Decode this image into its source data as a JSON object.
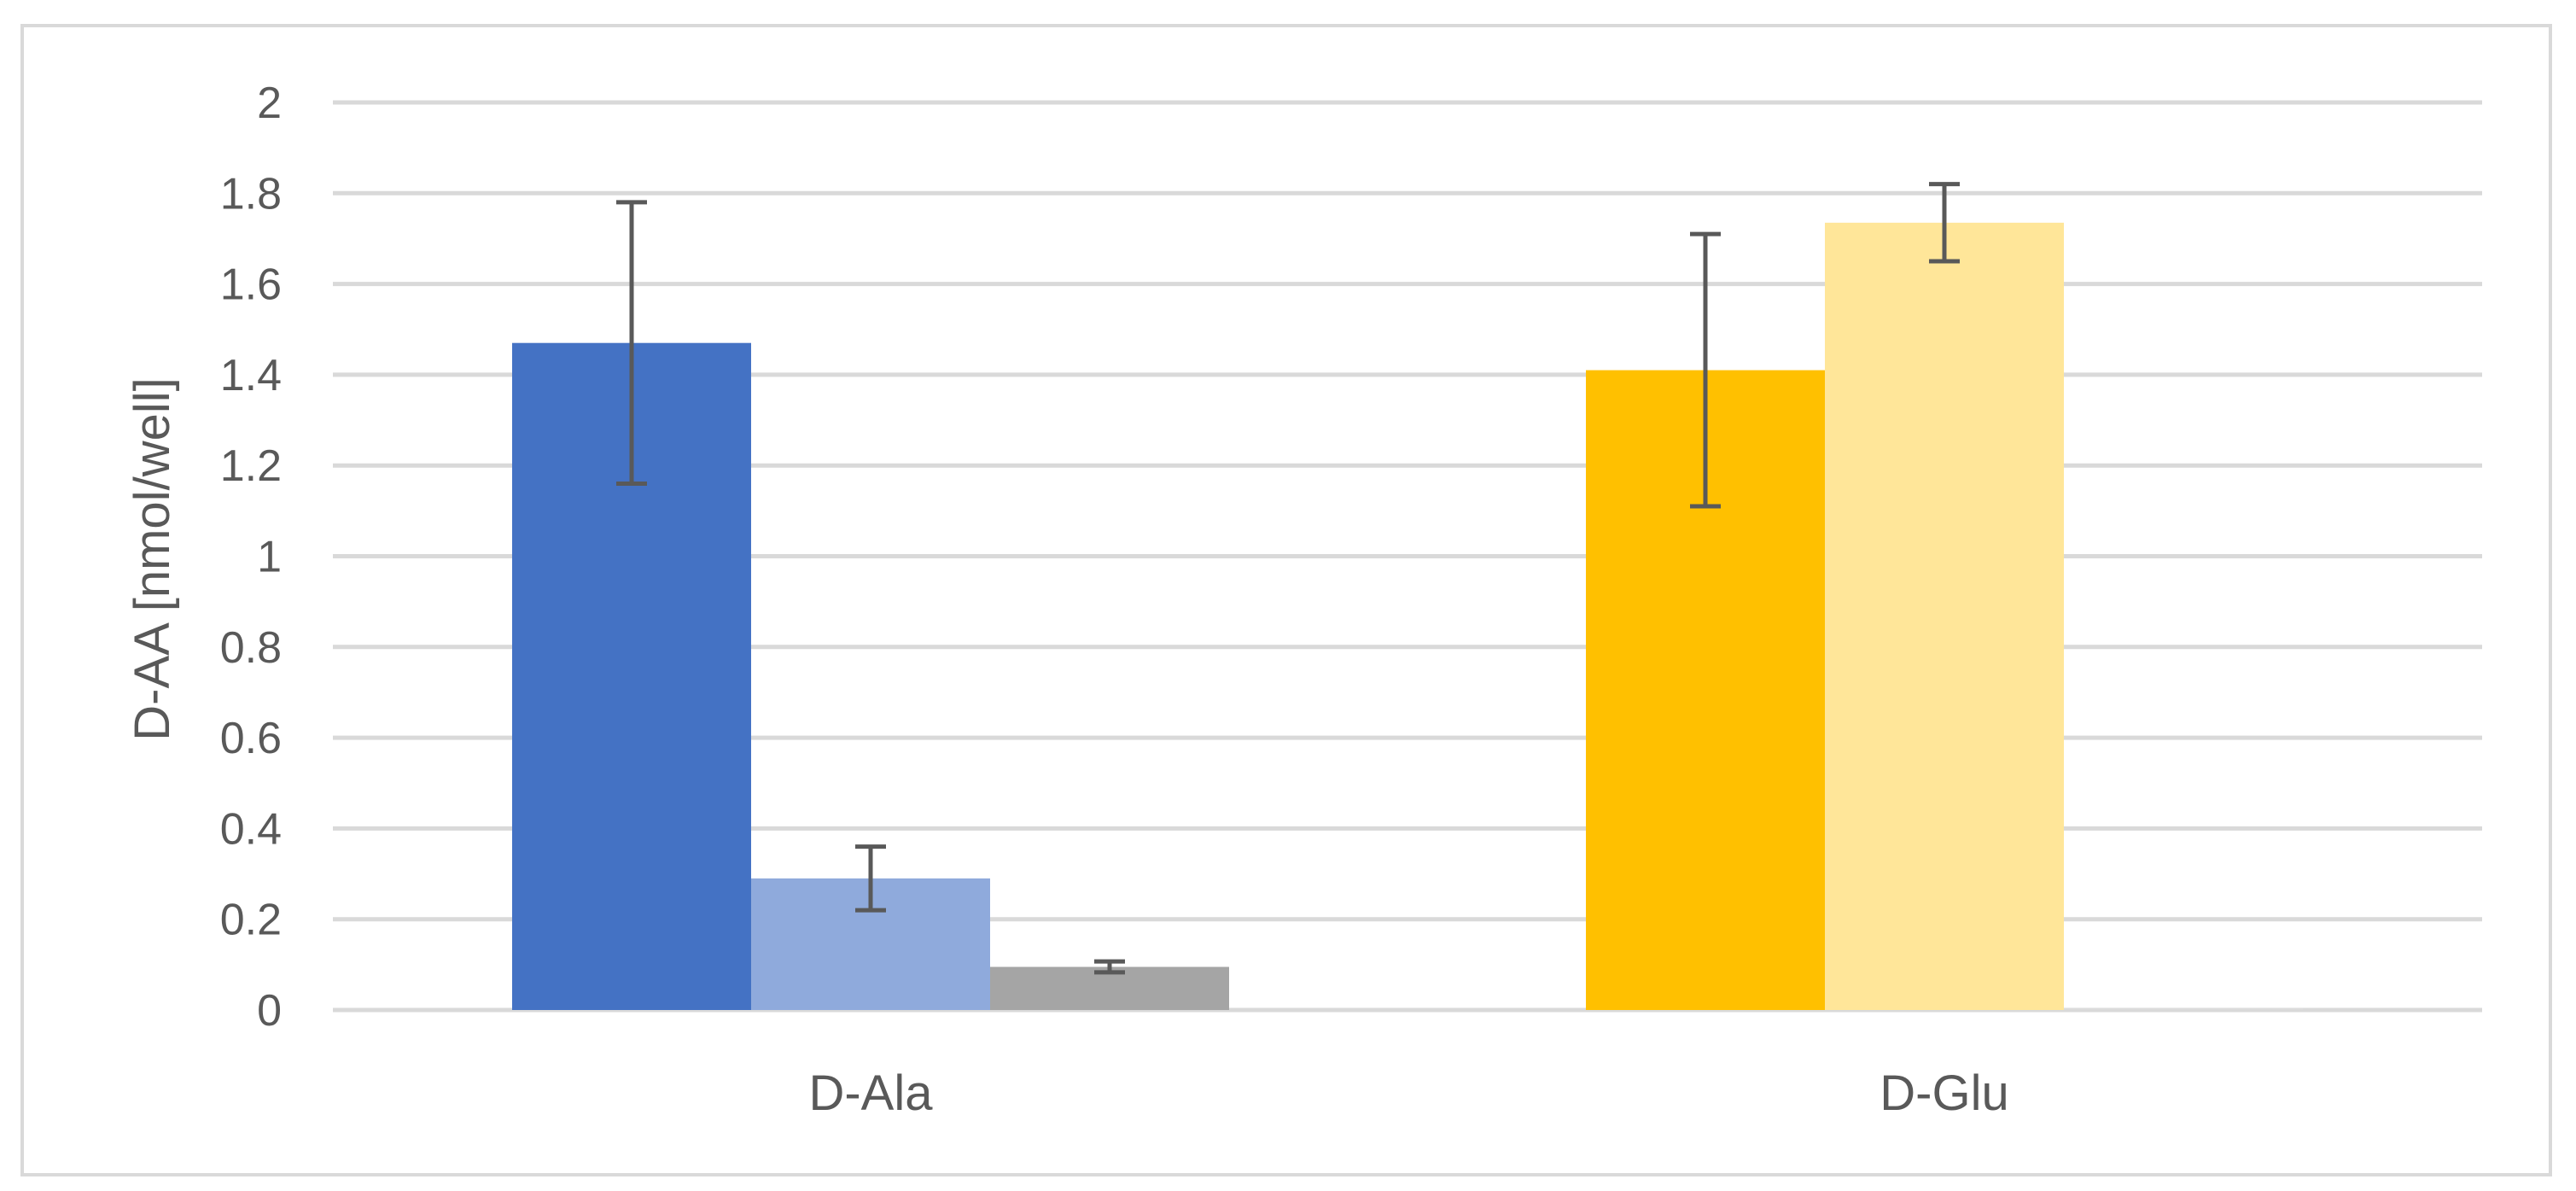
{
  "chart_data": {
    "type": "bar",
    "title": "",
    "xlabel": "",
    "ylabel": "D-AA [nmol/well]",
    "ylim": [
      0,
      2
    ],
    "yticks": [
      0,
      0.2,
      0.4,
      0.6,
      0.8,
      1,
      1.2,
      1.4,
      1.6,
      1.8,
      2
    ],
    "ytick_labels": [
      "0",
      "0.2",
      "0.4",
      "0.6",
      "0.8",
      "1",
      "1.2",
      "1.4",
      "1.6",
      "1.8",
      "2"
    ],
    "grid": true,
    "legend": "none",
    "categories": [
      "D-Ala",
      "D-Glu"
    ],
    "groups": [
      {
        "category": "D-Ala",
        "bars": [
          {
            "value": 1.47,
            "error": 0.31,
            "color": "#4472c4"
          },
          {
            "value": 0.29,
            "error": 0.07,
            "color": "#8faadc"
          },
          {
            "value": 0.095,
            "error": 0.012,
            "color": "#a5a5a5"
          }
        ]
      },
      {
        "category": "D-Glu",
        "bars": [
          {
            "value": 1.41,
            "error": 0.3,
            "color": "#ffc000"
          },
          {
            "value": 1.735,
            "error": 0.085,
            "color": "#ffe699"
          },
          {
            "value": 0.0,
            "error": 0.0,
            "color": "#dbdbdb"
          }
        ]
      }
    ],
    "gridline_color": "#d9d9d9",
    "errorbar_color": "#595959"
  }
}
